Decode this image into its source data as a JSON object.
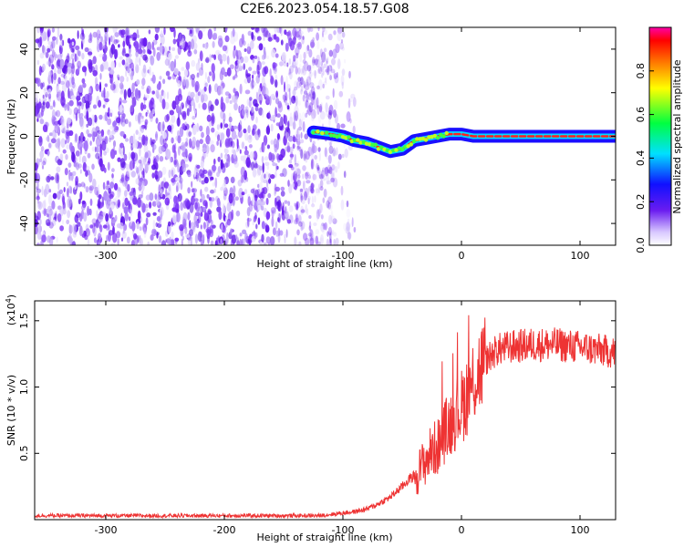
{
  "title": "C2E6.2023.054.18.57.G08",
  "chart_data": [
    {
      "type": "heatmap",
      "xlabel": "Height of straight line (km)",
      "ylabel": "Frequency (Hz)",
      "xlim": [
        -360,
        130
      ],
      "ylim": [
        -50,
        50
      ],
      "x_ticks": [
        -300,
        -200,
        -100,
        0,
        100
      ],
      "y_ticks": [
        -40,
        -20,
        0,
        20,
        40
      ],
      "colorbar": {
        "label": "Normalized spectral amplitude",
        "range": [
          0.0,
          1.0
        ],
        "ticks": [
          "0.0",
          "0.2",
          "0.4",
          "0.6",
          "0.8"
        ]
      },
      "ridge": {
        "x": [
          -125,
          -110,
          -100,
          -90,
          -80,
          -70,
          -60,
          -50,
          -40,
          -30,
          -20,
          -10,
          0,
          10,
          20,
          40,
          60,
          80,
          100,
          130
        ],
        "y": [
          2,
          1,
          0,
          -2,
          -3,
          -5,
          -7,
          -6,
          -2,
          -1,
          0,
          1,
          1,
          0,
          0,
          0,
          0,
          0,
          0,
          0
        ]
      },
      "noise_x_range": [
        -360,
        -100
      ]
    },
    {
      "type": "line",
      "xlabel": "Height of straight line (km)",
      "ylabel": "SNR (10 * v/v)",
      "y_scale_label": "(x10",
      "y_scale_exp": "4",
      "y_scale_close": ")",
      "xlim": [
        -360,
        130
      ],
      "ylim": [
        0,
        1.65
      ],
      "x_ticks": [
        -300,
        -200,
        -100,
        0,
        100
      ],
      "y_ticks": [
        0.5,
        1.0,
        1.5
      ],
      "y_tick_labels": [
        "0.5",
        "1.0",
        "1.5"
      ],
      "series": [
        {
          "color": "#ee3333",
          "x": [
            -360,
            -300,
            -200,
            -120,
            -100,
            -90,
            -80,
            -70,
            -60,
            -50,
            -45,
            -40,
            -35,
            -30,
            -25,
            -20,
            -15,
            -10,
            -5,
            0,
            10,
            20,
            30,
            40,
            60,
            80,
            100,
            130
          ],
          "y": [
            0.03,
            0.03,
            0.03,
            0.03,
            0.05,
            0.06,
            0.08,
            0.12,
            0.17,
            0.25,
            0.3,
            0.33,
            0.38,
            0.45,
            0.52,
            0.55,
            0.65,
            0.72,
            0.8,
            0.85,
            1.05,
            1.2,
            1.28,
            1.3,
            1.32,
            1.32,
            1.3,
            1.26
          ]
        }
      ]
    }
  ]
}
